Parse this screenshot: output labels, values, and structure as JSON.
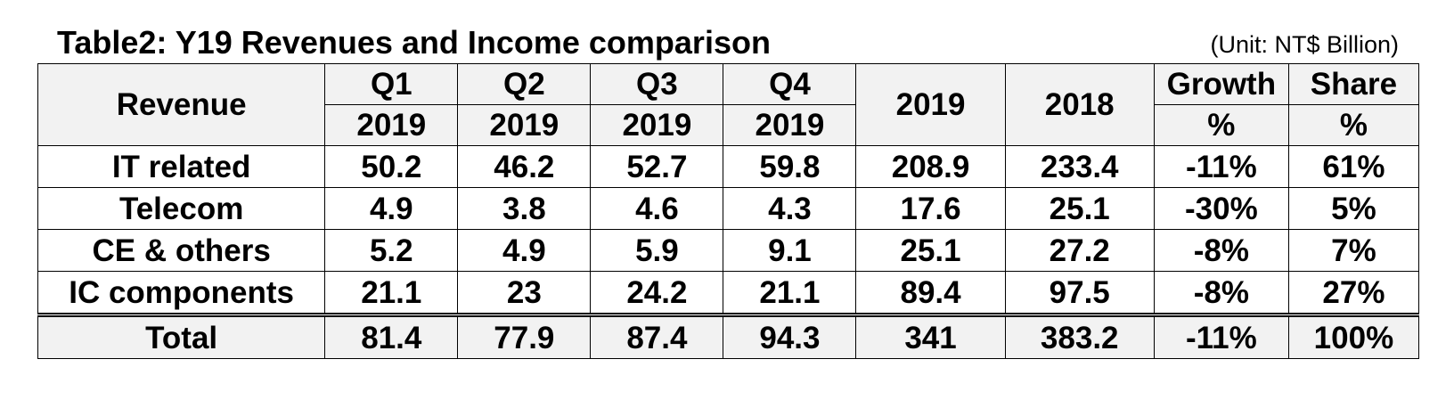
{
  "title": "Table2: Y19 Revenues and Income comparison",
  "unit": "(Unit: NT$ Billion)",
  "header": {
    "label": "Revenue",
    "quarters": [
      {
        "q": "Q1",
        "year": "2019"
      },
      {
        "q": "Q2",
        "year": "2019"
      },
      {
        "q": "Q3",
        "year": "2019"
      },
      {
        "q": "Q4",
        "year": "2019"
      }
    ],
    "year_2019": "2019",
    "year_2018": "2018",
    "growth": {
      "line1": "Growth",
      "line2": "%"
    },
    "share": {
      "line1": "Share",
      "line2": "%"
    }
  },
  "rows": [
    {
      "label": "IT related",
      "cells": [
        "50.2",
        "46.2",
        "52.7",
        "59.8",
        "208.9",
        "233.4",
        "-11%",
        "61%"
      ]
    },
    {
      "label": "Telecom",
      "cells": [
        "4.9",
        "3.8",
        "4.6",
        "4.3",
        "17.6",
        "25.1",
        "-30%",
        "5%"
      ]
    },
    {
      "label": "CE & others",
      "cells": [
        "5.2",
        "4.9",
        "5.9",
        "9.1",
        "25.1",
        "27.2",
        "-8%",
        "7%"
      ]
    },
    {
      "label": "IC components",
      "cells": [
        "21.1",
        "23",
        "24.2",
        "21.1",
        "89.4",
        "97.5",
        "-8%",
        "27%"
      ]
    }
  ],
  "total": {
    "label": "Total",
    "cells": [
      "81.4",
      "77.9",
      "87.4",
      "94.3",
      "341",
      "383.2",
      "-11%",
      "100%"
    ]
  }
}
